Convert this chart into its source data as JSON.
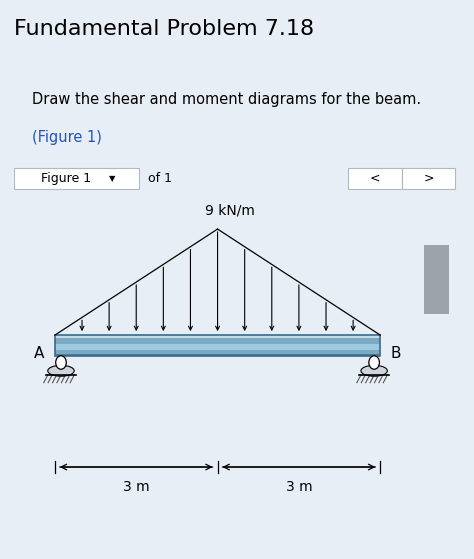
{
  "title": "Fundamental Problem 7.18",
  "problem_text": "Draw the shear and moment diagrams for the beam.",
  "figure_link": "(Figure 1)",
  "load_label": "9 kN/m",
  "left_label": "A",
  "right_label": "B",
  "dim_left": "3 m",
  "dim_right": "3 m",
  "outer_bg": "#e8eef5",
  "panel_bg": "#ffffff",
  "text_panel_bg": "#ffffff",
  "nav_bg": "#e8e8e8",
  "scrollbar_bg": "#c8cdd2",
  "scrollbar_thumb": "#9ca3aa",
  "figure_area_bg": "#ffffff",
  "beam_color_main": "#7baac4",
  "beam_color_light": "#a8c8dc",
  "beam_color_dark": "#5a8aaa",
  "beam_edge": "#4a7a9b",
  "arrow_color": "#000000",
  "title_fontsize": 16,
  "text_fontsize": 10.5,
  "nav_fontsize": 9,
  "load_fontsize": 10
}
